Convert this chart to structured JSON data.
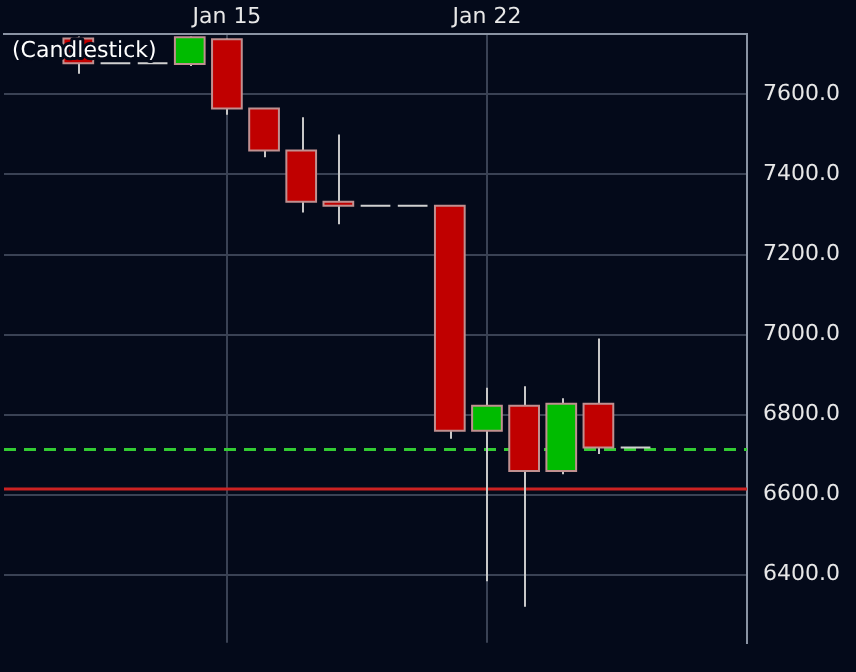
{
  "chart_data": {
    "type": "candlestick",
    "title": "(Candlestick)",
    "x": [
      "--01-11",
      "--01-12",
      "--01-13",
      "--01-14",
      "--01-15",
      "--01-16",
      "--01-17",
      "--01-18",
      "--01-19",
      "--01-20",
      "--01-21",
      "--01-22",
      "--01-23",
      "--01-24",
      "--01-25",
      "--01-26"
    ],
    "ohlc": [
      [
        7740,
        7745,
        7652,
        7678
      ],
      [
        7678,
        7678,
        7678,
        7678
      ],
      [
        7678,
        7678,
        7678,
        7678
      ],
      [
        7676,
        7745,
        7671,
        7743
      ],
      [
        7738,
        7740,
        7549,
        7565
      ],
      [
        7565,
        7565,
        7443,
        7460
      ],
      [
        7460,
        7543,
        7305,
        7332
      ],
      [
        7332,
        7500,
        7276,
        7322
      ],
      [
        7322,
        7322,
        7322,
        7322
      ],
      [
        7322,
        7322,
        7322,
        7322
      ],
      [
        7322,
        7322,
        6740,
        6760
      ],
      [
        6760,
        6867,
        6384,
        6822
      ],
      [
        6822,
        6871,
        6320,
        6659
      ],
      [
        6659,
        6841,
        6651,
        6827
      ],
      [
        6827,
        6990,
        6702,
        6718
      ],
      [
        6718,
        6718,
        6718,
        6718
      ]
    ],
    "colors": [
      "#c00000",
      "#d0d0d0",
      "#d0d0d0",
      "#00bb00",
      "#c00000",
      "#c00000",
      "#c00000",
      "#c00000",
      "#d0d0d0",
      "#d0d0d0",
      "#c00000",
      "#00bb00",
      "#c00000",
      "#00bb00",
      "#c00000",
      "#d0d0d0"
    ],
    "xlim": [
      "--01-09",
      "--01-29"
    ],
    "xticks": [
      {
        "value": "--01-15",
        "label": "Jan 15"
      },
      {
        "value": "--01-22",
        "label": "Jan 22"
      }
    ],
    "ylim": [
      6230,
      7750
    ],
    "yticks": [
      {
        "value": 6400,
        "label": "6400.0"
      },
      {
        "value": 6600,
        "label": "6600.0"
      },
      {
        "value": 6800,
        "label": "6800.0"
      },
      {
        "value": 7000,
        "label": "7000.0"
      },
      {
        "value": 7200,
        "label": "7200.0"
      },
      {
        "value": 7400,
        "label": "7400.0"
      },
      {
        "value": 7600,
        "label": "7600.0"
      }
    ],
    "ref_lines": [
      {
        "axis": "y",
        "value": 6713,
        "color": "#33cc33",
        "line_style": "dashed"
      },
      {
        "axis": "y",
        "value": 6614,
        "color": "#cc2222",
        "line_style": "solid"
      }
    ],
    "grid": true,
    "legend": false
  }
}
